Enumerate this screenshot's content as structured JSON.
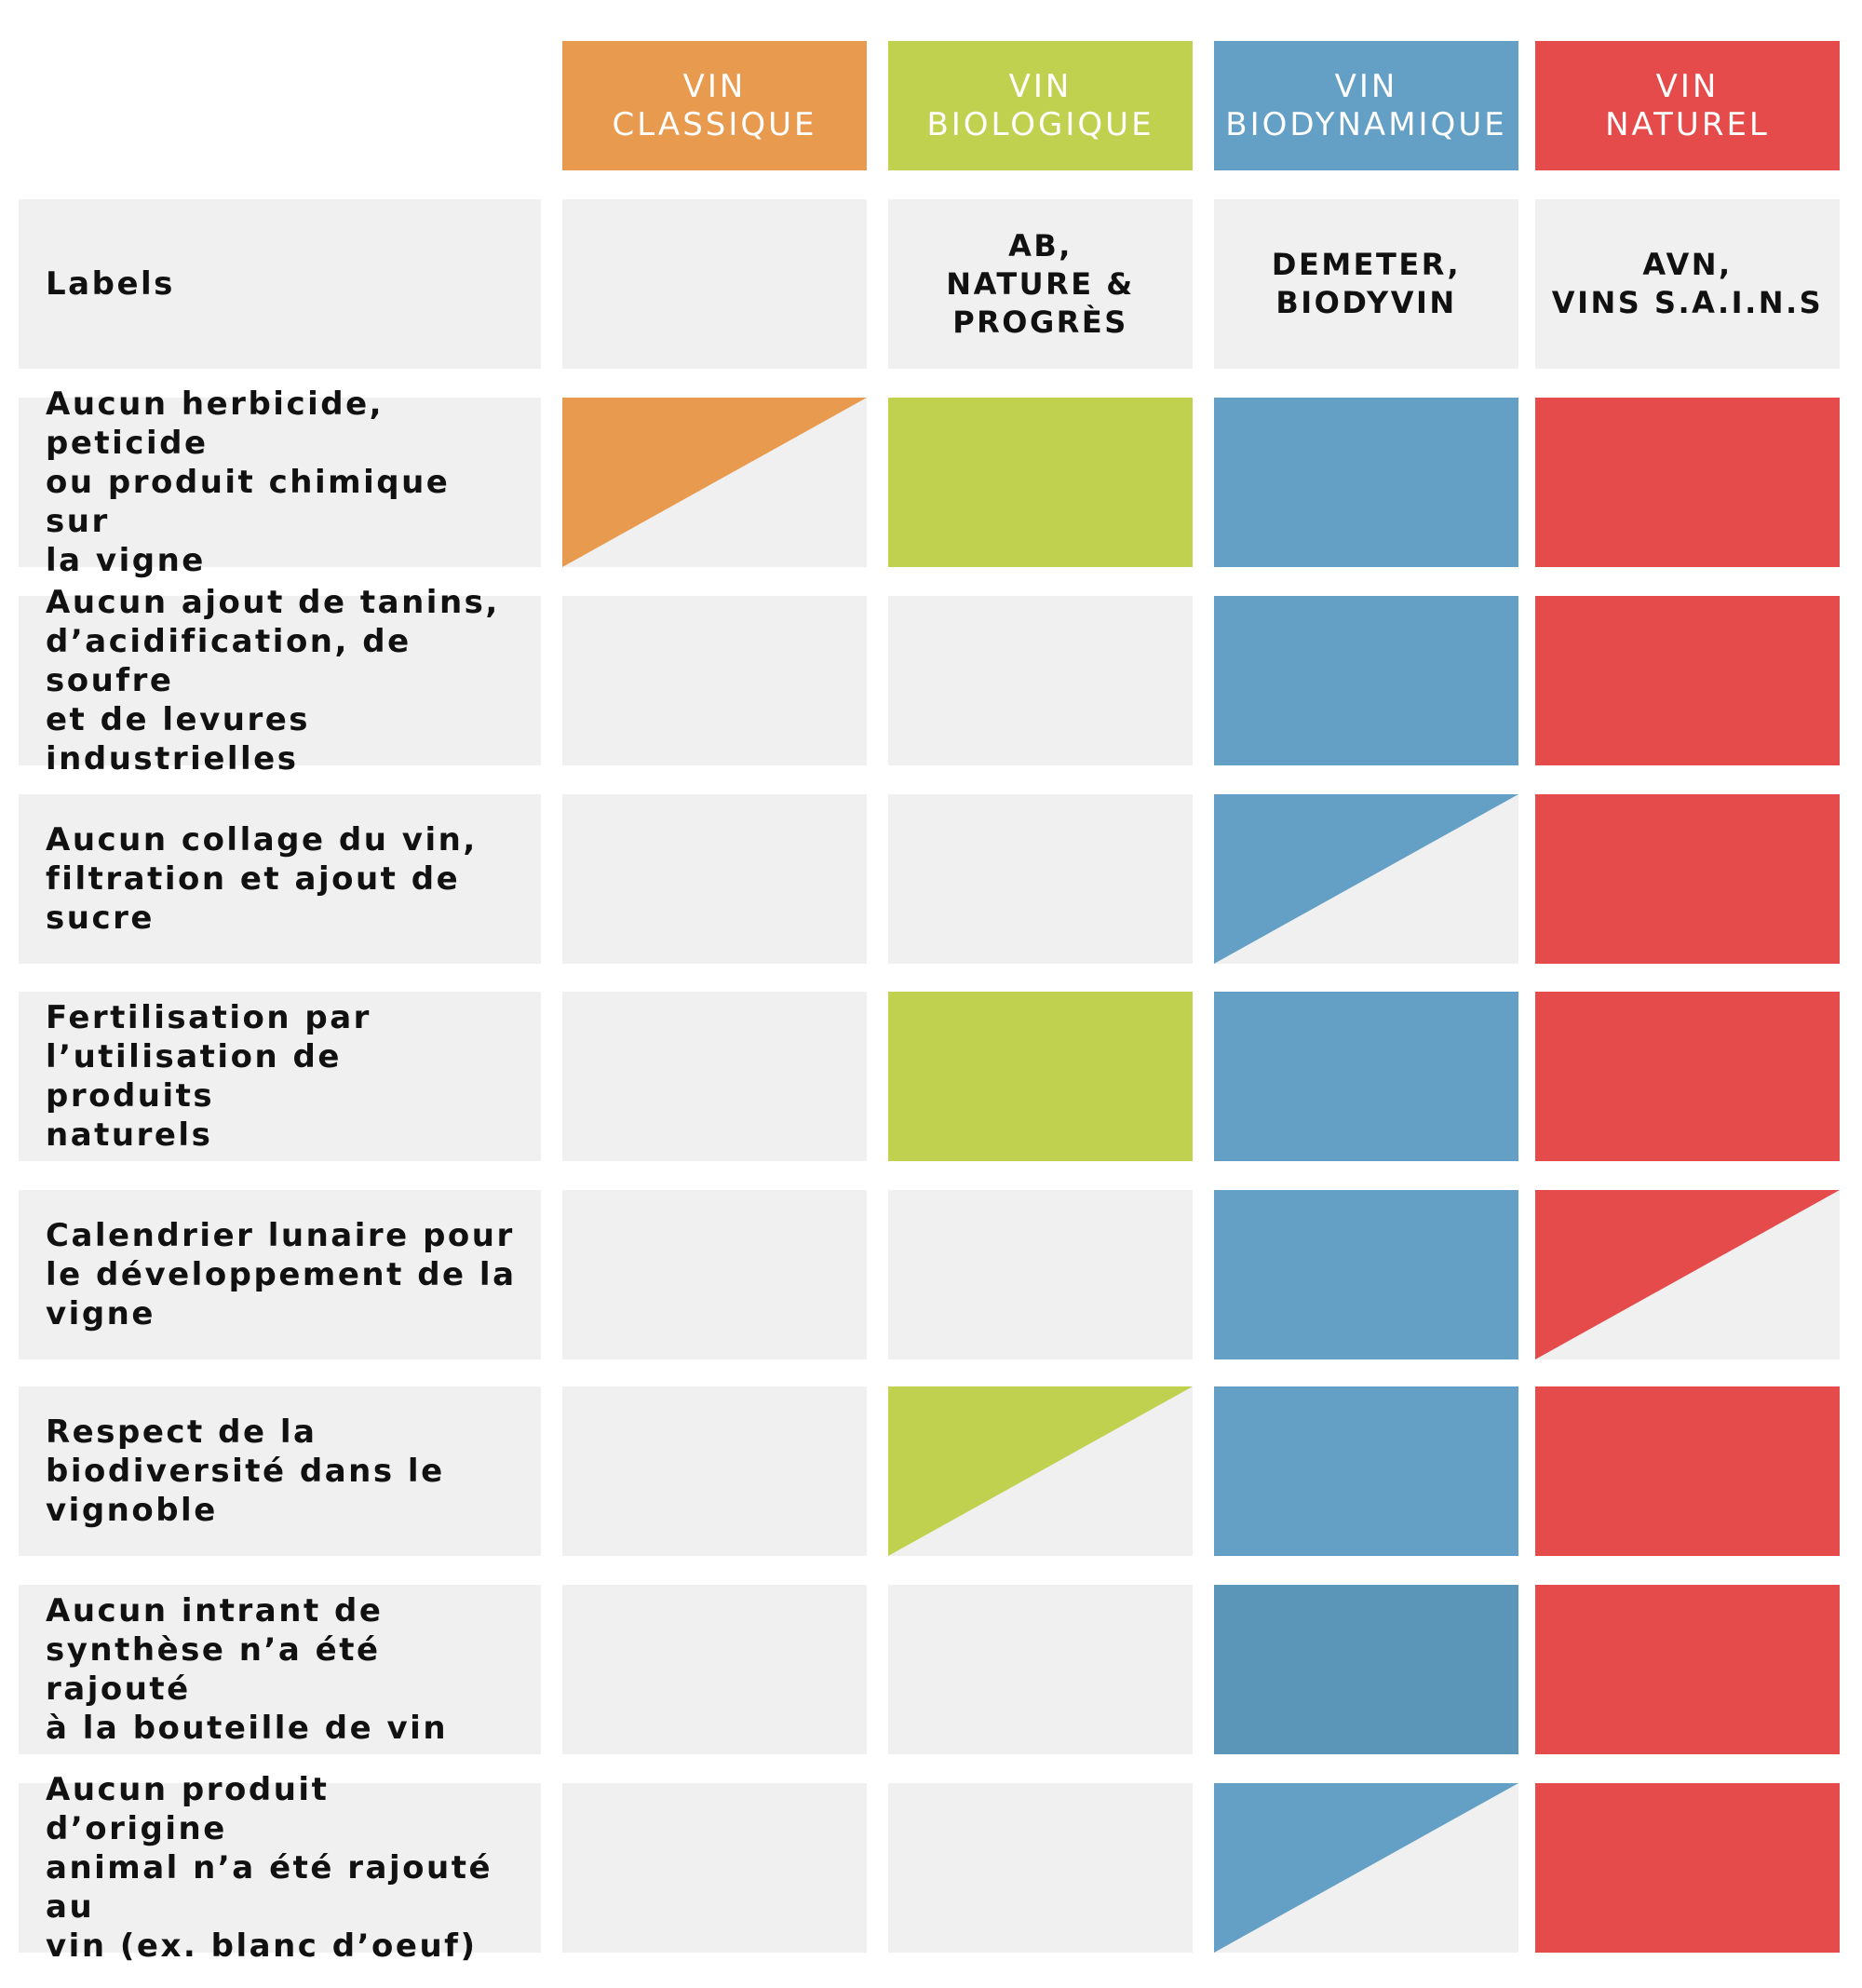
{
  "colors": {
    "cell_background": "#f0f0f0",
    "classique": "#e89a4f",
    "biologique": "#c0d14f",
    "biodynamique": "#649fc5",
    "biodynamique_dark": "#5b95b8",
    "naturel": "#e54b4b"
  },
  "columns": [
    {
      "key": "classique",
      "label": "VIN\nCLASSIQUE",
      "color": "#e89a4f"
    },
    {
      "key": "biologique",
      "label": "VIN\nBIOLOGIQUE",
      "color": "#c0d14f"
    },
    {
      "key": "biodynamique",
      "label": "VIN\nBIODYNAMIQUE",
      "color": "#649fc5"
    },
    {
      "key": "naturel",
      "label": "VIN\nNATUREL",
      "color": "#e54b4b"
    }
  ],
  "labels_row": {
    "label": "Labels",
    "values": [
      "",
      "AB,\nNATURE &\nPROGRÈS",
      "DEMETER,\nBIODYVIN",
      "AVN,\nVINS S.A.I.N.S"
    ]
  },
  "criteria": [
    {
      "label": "Aucun herbicide, peticide\nou produit chimique sur\nla vigne",
      "cells": [
        "partial",
        "full",
        "full",
        "full"
      ]
    },
    {
      "label": "Aucun ajout de tanins,\nd’acidification, de soufre\net de levures industrielles",
      "cells": [
        "none",
        "none",
        "full",
        "full"
      ]
    },
    {
      "label": "Aucun collage du vin,\nfiltration et ajout de\nsucre",
      "cells": [
        "none",
        "none",
        "partial",
        "full"
      ]
    },
    {
      "label": "Fertilisation par\nl’utilisation de produits\nnaturels",
      "cells": [
        "none",
        "full",
        "full",
        "full"
      ]
    },
    {
      "label": "Calendrier lunaire pour\nle développement de la\nvigne",
      "cells": [
        "none",
        "none",
        "full",
        "partial"
      ]
    },
    {
      "label": "Respect de la\nbiodiversité dans le\nvignoble",
      "cells": [
        "none",
        "partial",
        "full",
        "full"
      ]
    },
    {
      "label": "Aucun intrant de\nsynthèse n’a été rajouté\nà la bouteille de vin",
      "cells": [
        "none",
        "none",
        "full-dark",
        "full"
      ]
    },
    {
      "label": "Aucun produit d’origine\nanimal n’a été rajouté au\nvin (ex. blanc d’oeuf)",
      "cells": [
        "none",
        "none",
        "partial",
        "full"
      ]
    }
  ]
}
